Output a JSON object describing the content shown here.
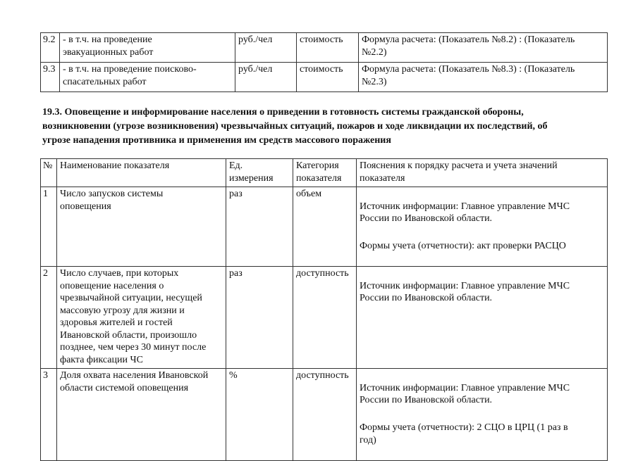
{
  "top_table": {
    "rows": [
      {
        "num": "9.2",
        "name": "- в т.ч. на проведение\nэвакуационных работ",
        "unit": "руб./чел",
        "category": "стоимость",
        "notes": [
          "Формула расчета: (Показатель №8.2) : (Показатель\n№2.2)"
        ]
      },
      {
        "num": "9.3",
        "name": "- в т.ч. на проведение поисково-\nспасательных работ",
        "unit": "руб./чел",
        "category": "стоимость",
        "notes": [
          "Формула расчета: (Показатель №8.3) : (Показатель\n№2.3)"
        ]
      }
    ]
  },
  "section": {
    "heading": "19.3.   Оповещение и информирование населения о приведении в готовность системы гражданской обороны,\nвозникновении (угрозе возникновения) чрезвычайных ситуаций, пожаров и ходе ликвидации их последствий, об\nугрозе нападения противника и применения им средств массового поражения"
  },
  "main_table": {
    "headers": {
      "num": "№",
      "name": "Наименование показателя",
      "unit": "Ед.\nизмерения",
      "category": "Категория\nпоказателя",
      "notes": "Пояснения к порядку расчета и учета значений\nпоказателя"
    },
    "rows": [
      {
        "num": "1",
        "name": "Число запусков системы\nоповещения",
        "unit": "раз",
        "category": "объем",
        "notes": [
          "Источник информации: Главное управление МЧС\nРоссии по Ивановской области.",
          "Формы учета (отчетности): акт проверки РАСЦО"
        ]
      },
      {
        "num": "2",
        "name": "Число случаев, при которых\nоповещение населения о\nчрезвычайной ситуации, несущей\nмассовую угрозу для жизни и\nздоровья жителей и гостей\nИвановской области, произошло\nпозднее, чем через 30 минут после\nфакта фиксации ЧС",
        "unit": "раз",
        "category": "доступность",
        "notes": [
          "Источник информации: Главное управление МЧС\nРоссии по Ивановской области."
        ]
      },
      {
        "num": "3",
        "name": "Доля охвата населения Ивановской\nобласти системой оповещения",
        "unit": "%",
        "category": "доступность",
        "notes": [
          "Источник информации: Главное управление МЧС\nРоссии по Ивановской области.",
          "Формы учета (отчетности): 2 СЦО в ЦРЦ (1 раз в\nгод)"
        ]
      }
    ]
  }
}
